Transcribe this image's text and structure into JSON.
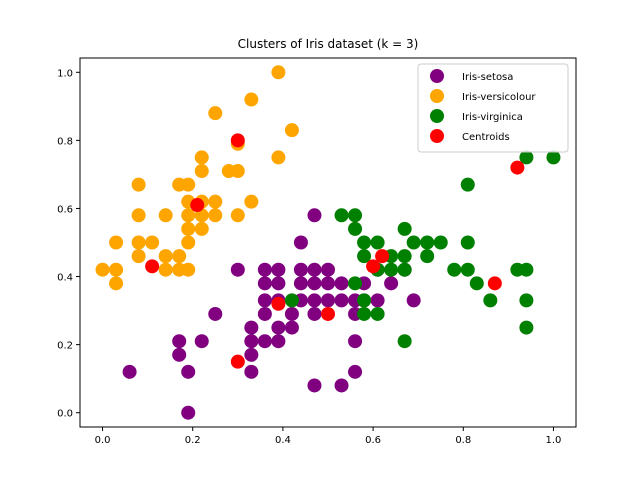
{
  "chart_data": {
    "type": "scatter",
    "title": "Clusters of Iris dataset (k = 3)",
    "xlabel": "",
    "ylabel": "",
    "xlim": [
      -0.05,
      1.05
    ],
    "ylim": [
      -0.042,
      1.042
    ],
    "xticks": [
      0.0,
      0.2,
      0.4,
      0.6,
      0.8,
      1.0
    ],
    "yticks": [
      0.0,
      0.2,
      0.4,
      0.6,
      0.8,
      1.0
    ],
    "xtick_labels": [
      "0.0",
      "0.2",
      "0.4",
      "0.6",
      "0.8",
      "1.0"
    ],
    "ytick_labels": [
      "0.0",
      "0.2",
      "0.4",
      "0.6",
      "0.8",
      "1.0"
    ],
    "grid": false,
    "legend_position": "top-right",
    "series": [
      {
        "name": "Iris-setosa",
        "color": "#800080",
        "points": [
          [
            0.19,
            0.0
          ],
          [
            0.47,
            0.08
          ],
          [
            0.53,
            0.08
          ],
          [
            0.06,
            0.12
          ],
          [
            0.33,
            0.12
          ],
          [
            0.56,
            0.12
          ],
          [
            0.19,
            0.12
          ],
          [
            0.17,
            0.17
          ],
          [
            0.33,
            0.17
          ],
          [
            0.17,
            0.21
          ],
          [
            0.22,
            0.21
          ],
          [
            0.33,
            0.21
          ],
          [
            0.36,
            0.21
          ],
          [
            0.39,
            0.21
          ],
          [
            0.56,
            0.21
          ],
          [
            0.33,
            0.25
          ],
          [
            0.39,
            0.25
          ],
          [
            0.42,
            0.25
          ],
          [
            0.25,
            0.29
          ],
          [
            0.36,
            0.29
          ],
          [
            0.42,
            0.29
          ],
          [
            0.47,
            0.29
          ],
          [
            0.56,
            0.29
          ],
          [
            0.36,
            0.33
          ],
          [
            0.39,
            0.33
          ],
          [
            0.44,
            0.33
          ],
          [
            0.47,
            0.33
          ],
          [
            0.5,
            0.33
          ],
          [
            0.53,
            0.33
          ],
          [
            0.56,
            0.33
          ],
          [
            0.58,
            0.33
          ],
          [
            0.61,
            0.33
          ],
          [
            0.69,
            0.33
          ],
          [
            0.36,
            0.38
          ],
          [
            0.39,
            0.38
          ],
          [
            0.44,
            0.38
          ],
          [
            0.47,
            0.38
          ],
          [
            0.5,
            0.38
          ],
          [
            0.53,
            0.38
          ],
          [
            0.58,
            0.38
          ],
          [
            0.64,
            0.38
          ],
          [
            0.3,
            0.42
          ],
          [
            0.36,
            0.42
          ],
          [
            0.39,
            0.42
          ],
          [
            0.44,
            0.42
          ],
          [
            0.47,
            0.42
          ],
          [
            0.5,
            0.42
          ],
          [
            0.61,
            0.42
          ],
          [
            0.67,
            0.42
          ],
          [
            0.44,
            0.5
          ],
          [
            0.47,
            0.58
          ]
        ]
      },
      {
        "name": "Iris-versicolour",
        "color": "#FFA500",
        "points": [
          [
            0.0,
            0.42
          ],
          [
            0.03,
            0.42
          ],
          [
            0.03,
            0.38
          ],
          [
            0.03,
            0.5
          ],
          [
            0.08,
            0.5
          ],
          [
            0.11,
            0.5
          ],
          [
            0.08,
            0.46
          ],
          [
            0.14,
            0.42
          ],
          [
            0.17,
            0.42
          ],
          [
            0.19,
            0.42
          ],
          [
            0.14,
            0.46
          ],
          [
            0.17,
            0.46
          ],
          [
            0.19,
            0.5
          ],
          [
            0.19,
            0.54
          ],
          [
            0.22,
            0.54
          ],
          [
            0.08,
            0.58
          ],
          [
            0.14,
            0.58
          ],
          [
            0.19,
            0.58
          ],
          [
            0.22,
            0.58
          ],
          [
            0.25,
            0.58
          ],
          [
            0.3,
            0.58
          ],
          [
            0.19,
            0.62
          ],
          [
            0.22,
            0.62
          ],
          [
            0.25,
            0.62
          ],
          [
            0.33,
            0.62
          ],
          [
            0.08,
            0.67
          ],
          [
            0.17,
            0.67
          ],
          [
            0.19,
            0.67
          ],
          [
            0.22,
            0.71
          ],
          [
            0.28,
            0.71
          ],
          [
            0.3,
            0.71
          ],
          [
            0.22,
            0.75
          ],
          [
            0.39,
            0.75
          ],
          [
            0.3,
            0.79
          ],
          [
            0.42,
            0.83
          ],
          [
            0.25,
            0.88
          ],
          [
            0.33,
            0.92
          ],
          [
            0.39,
            1.0
          ]
        ]
      },
      {
        "name": "Iris-virginica",
        "color": "#008000",
        "points": [
          [
            0.67,
            0.21
          ],
          [
            0.94,
            0.25
          ],
          [
            0.58,
            0.29
          ],
          [
            0.61,
            0.29
          ],
          [
            0.42,
            0.33
          ],
          [
            0.58,
            0.33
          ],
          [
            0.86,
            0.33
          ],
          [
            0.94,
            0.33
          ],
          [
            0.56,
            0.38
          ],
          [
            0.83,
            0.38
          ],
          [
            0.61,
            0.42
          ],
          [
            0.64,
            0.42
          ],
          [
            0.67,
            0.42
          ],
          [
            0.78,
            0.42
          ],
          [
            0.81,
            0.42
          ],
          [
            0.92,
            0.42
          ],
          [
            0.94,
            0.42
          ],
          [
            0.58,
            0.46
          ],
          [
            0.64,
            0.46
          ],
          [
            0.67,
            0.46
          ],
          [
            0.72,
            0.46
          ],
          [
            0.58,
            0.5
          ],
          [
            0.61,
            0.5
          ],
          [
            0.69,
            0.5
          ],
          [
            0.72,
            0.5
          ],
          [
            0.75,
            0.5
          ],
          [
            0.81,
            0.5
          ],
          [
            0.56,
            0.54
          ],
          [
            0.67,
            0.54
          ],
          [
            0.53,
            0.58
          ],
          [
            0.56,
            0.58
          ],
          [
            0.81,
            0.67
          ],
          [
            0.94,
            0.75
          ],
          [
            1.0,
            0.75
          ]
        ]
      },
      {
        "name": "Centroids",
        "color": "#FF0000",
        "points": [
          [
            0.3,
            0.8
          ],
          [
            0.21,
            0.61
          ],
          [
            0.11,
            0.43
          ],
          [
            0.3,
            0.15
          ],
          [
            0.39,
            0.32
          ],
          [
            0.5,
            0.29
          ],
          [
            0.6,
            0.43
          ],
          [
            0.62,
            0.46
          ],
          [
            0.87,
            0.38
          ],
          [
            0.92,
            0.72
          ]
        ]
      }
    ]
  }
}
